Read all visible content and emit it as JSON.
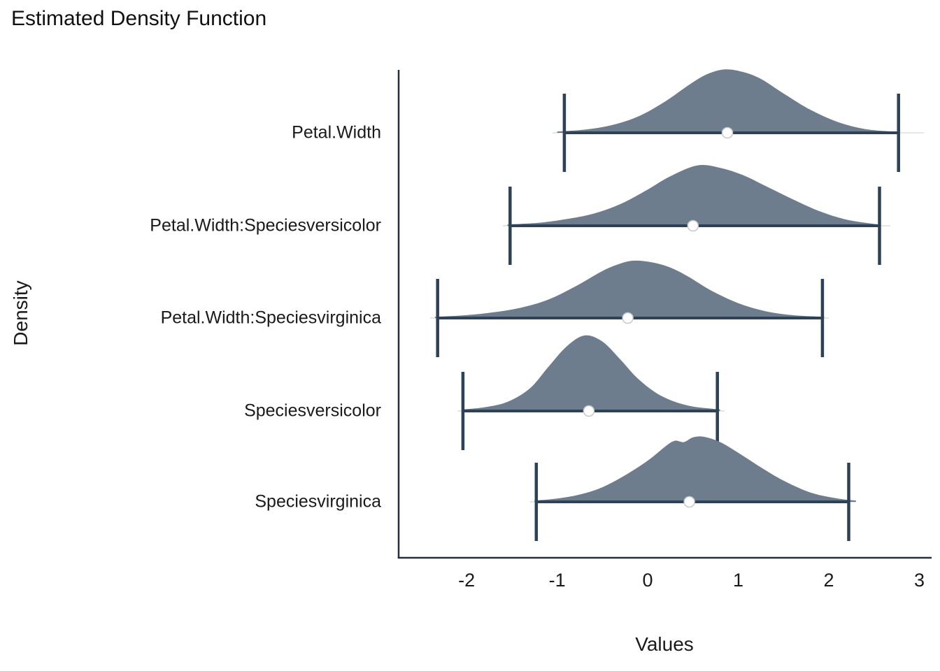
{
  "title": "Estimated Density Function",
  "x_axis": {
    "label": "Values",
    "tick_labels": [
      "-2",
      "-1",
      "0",
      "1",
      "2",
      "3"
    ],
    "tick_values": [
      -2,
      -1,
      0,
      1,
      2,
      3
    ],
    "domain": [
      -2.75,
      3.12
    ]
  },
  "y_axis": {
    "label": "Density"
  },
  "colors": {
    "density_fill": "#6e7d8e",
    "interval": "#2e4257",
    "axis": "#22313f",
    "baseline": "#d8d8d8",
    "point_fill": "#ffffff",
    "point_stroke": "#c9c9c9",
    "text": "#1a1a1a"
  },
  "chart_data": {
    "type": "area",
    "subtype": "ridgeline-density-intervals",
    "title": "Estimated Density Function",
    "xlabel": "Values",
    "ylabel": "Density",
    "xlim": [
      -2.75,
      3.12
    ],
    "grid": false,
    "legend": "none",
    "rows": [
      {
        "label": "Petal.Width",
        "interval": [
          -0.92,
          2.77
        ],
        "point": 0.88,
        "rel_peak": 0.84,
        "base_extent": [
          -1.05,
          3.05
        ],
        "density": {
          "x": [
            -1.0,
            -0.7,
            -0.4,
            -0.1,
            0.2,
            0.45,
            0.65,
            0.85,
            1.05,
            1.25,
            1.5,
            1.8,
            2.1,
            2.4,
            2.7
          ],
          "h": [
            0.02,
            0.05,
            0.12,
            0.26,
            0.5,
            0.75,
            0.92,
            1.0,
            0.96,
            0.85,
            0.62,
            0.36,
            0.17,
            0.06,
            0.02
          ]
        }
      },
      {
        "label": "Petal.Width:Speciesversicolor",
        "interval": [
          -1.52,
          2.56
        ],
        "point": 0.5,
        "rel_peak": 0.8,
        "base_extent": [
          -1.6,
          2.68
        ],
        "density": {
          "x": [
            -1.55,
            -1.2,
            -0.9,
            -0.6,
            -0.3,
            0.0,
            0.25,
            0.55,
            0.8,
            1.05,
            1.3,
            1.6,
            1.9,
            2.2,
            2.55
          ],
          "h": [
            0.02,
            0.05,
            0.11,
            0.2,
            0.36,
            0.6,
            0.82,
            1.0,
            0.96,
            0.84,
            0.66,
            0.44,
            0.24,
            0.1,
            0.02
          ]
        }
      },
      {
        "label": "Petal.Width:Speciesvirginica",
        "interval": [
          -2.32,
          1.93
        ],
        "point": -0.22,
        "rel_peak": 0.76,
        "base_extent": [
          -2.4,
          2.0
        ],
        "density": {
          "x": [
            -2.35,
            -2.0,
            -1.7,
            -1.4,
            -1.1,
            -0.8,
            -0.5,
            -0.3,
            -0.15,
            0.05,
            0.25,
            0.45,
            0.7,
            1.0,
            1.3,
            1.6,
            1.95
          ],
          "h": [
            0.02,
            0.05,
            0.1,
            0.18,
            0.32,
            0.55,
            0.82,
            0.95,
            1.0,
            0.97,
            0.88,
            0.72,
            0.48,
            0.26,
            0.12,
            0.05,
            0.02
          ]
        }
      },
      {
        "label": "Speciesversicolor",
        "interval": [
          -2.04,
          0.77
        ],
        "point": -0.65,
        "rel_peak": 1.0,
        "base_extent": [
          -2.1,
          0.85
        ],
        "density": {
          "x": [
            -2.05,
            -1.8,
            -1.55,
            -1.3,
            -1.1,
            -0.9,
            -0.7,
            -0.5,
            -0.3,
            -0.1,
            0.15,
            0.45,
            0.8
          ],
          "h": [
            0.02,
            0.05,
            0.12,
            0.3,
            0.58,
            0.85,
            1.0,
            0.92,
            0.68,
            0.42,
            0.2,
            0.07,
            0.02
          ]
        }
      },
      {
        "label": "Speciesvirginica",
        "interval": [
          -1.23,
          2.22
        ],
        "point": 0.46,
        "rel_peak": 0.88,
        "base_extent": [
          -1.3,
          2.3
        ],
        "density": {
          "x": [
            -1.25,
            -1.0,
            -0.75,
            -0.5,
            -0.25,
            0.0,
            0.2,
            0.3,
            0.4,
            0.5,
            0.62,
            0.8,
            1.0,
            1.25,
            1.5,
            1.8,
            2.1,
            2.3
          ],
          "h": [
            0.02,
            0.05,
            0.11,
            0.22,
            0.4,
            0.62,
            0.84,
            0.92,
            0.9,
            0.97,
            0.98,
            0.9,
            0.74,
            0.52,
            0.32,
            0.14,
            0.05,
            0.02
          ]
        }
      }
    ]
  }
}
